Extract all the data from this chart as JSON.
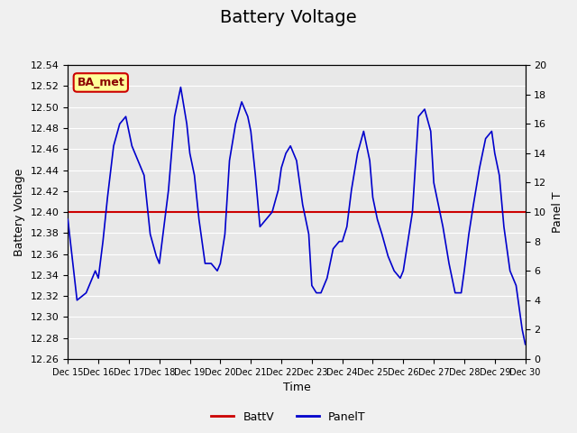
{
  "title": "Battery Voltage",
  "xlabel": "Time",
  "ylabel_left": "Battery Voltage",
  "ylabel_right": "Panel T",
  "xlim_start": "2023-12-15",
  "xlim_end": "2023-12-30",
  "ylim_left": [
    12.26,
    12.54
  ],
  "ylim_right": [
    0,
    20
  ],
  "battv_value": 12.4,
  "background_color": "#f0f0f0",
  "plot_bg_color": "#e8e8e8",
  "grid_color": "#ffffff",
  "title_fontsize": 14,
  "axis_fontsize": 10,
  "legend_label_battv": "BattV",
  "legend_label_panelt": "PanelT",
  "battv_color": "#cc0000",
  "panelt_color": "#0000cc",
  "watermark_text": "BA_met",
  "watermark_bg": "#ffff99",
  "watermark_border": "#cc0000",
  "xtick_labels": [
    "Dec 15",
    "Dec 16",
    "Dec 17",
    "Dec 18",
    "Dec 19",
    "Dec 20",
    "Dec 21",
    "Dec 22",
    "Dec 23",
    "Dec 24",
    "Dec 25",
    "Dec 26",
    "Dec 27",
    "Dec 28",
    "Dec 29",
    "Dec 30"
  ],
  "yticks_left": [
    12.26,
    12.28,
    12.3,
    12.32,
    12.34,
    12.36,
    12.38,
    12.4,
    12.42,
    12.44,
    12.46,
    12.48,
    12.5,
    12.52,
    12.54
  ],
  "yticks_right": [
    0,
    2,
    4,
    6,
    8,
    10,
    12,
    14,
    16,
    18,
    20
  ],
  "panelt_x": [
    0,
    0.3,
    0.6,
    0.9,
    1.0,
    1.15,
    1.3,
    1.5,
    1.7,
    1.9,
    2.1,
    2.2,
    2.3,
    2.5,
    2.7,
    2.9,
    3.0,
    3.15,
    3.3,
    3.5,
    3.7,
    3.9,
    4.0,
    4.15,
    4.3,
    4.5,
    4.7,
    4.9,
    5.0,
    5.15,
    5.3,
    5.5,
    5.7,
    5.9,
    6.0,
    6.15,
    6.3,
    6.5,
    6.7,
    6.9,
    7.0,
    7.15,
    7.3,
    7.5,
    7.7,
    7.9,
    8.0,
    8.15,
    8.3,
    8.5,
    8.7,
    8.9,
    9.0,
    9.15,
    9.3,
    9.5,
    9.7,
    9.9,
    10.0,
    10.15,
    10.3,
    10.5,
    10.7,
    10.9,
    11.0,
    11.15,
    11.3,
    11.5,
    11.7,
    11.9,
    12.0,
    12.15,
    12.3,
    12.5,
    12.7,
    12.9,
    13.0,
    13.15,
    13.3,
    13.5,
    13.7,
    13.9,
    14.0,
    14.15,
    14.3,
    14.5,
    14.7,
    14.9,
    14.95,
    15.0
  ],
  "panelt_y": [
    9.5,
    4.0,
    4.5,
    6.0,
    5.5,
    8.0,
    11.0,
    14.5,
    16.0,
    16.5,
    14.5,
    14.0,
    13.5,
    12.5,
    8.5,
    7.0,
    6.5,
    9.0,
    11.5,
    16.5,
    18.5,
    16.0,
    14.0,
    12.5,
    9.5,
    6.5,
    6.5,
    6.0,
    6.5,
    8.5,
    13.5,
    16.0,
    17.5,
    16.5,
    15.5,
    12.5,
    9.0,
    9.5,
    10.0,
    11.5,
    13.0,
    14.0,
    14.5,
    13.5,
    10.5,
    8.5,
    5.0,
    4.5,
    4.5,
    5.5,
    7.5,
    8.0,
    8.0,
    9.0,
    11.5,
    14.0,
    15.5,
    13.5,
    11.0,
    9.5,
    8.5,
    7.0,
    6.0,
    5.5,
    6.0,
    8.0,
    10.0,
    16.5,
    17.0,
    15.5,
    12.0,
    10.5,
    9.0,
    6.5,
    4.5,
    4.5,
    6.0,
    8.5,
    10.5,
    13.0,
    15.0,
    15.5,
    14.0,
    12.5,
    9.0,
    6.0,
    5.0,
    2.0,
    1.5,
    1.0
  ]
}
